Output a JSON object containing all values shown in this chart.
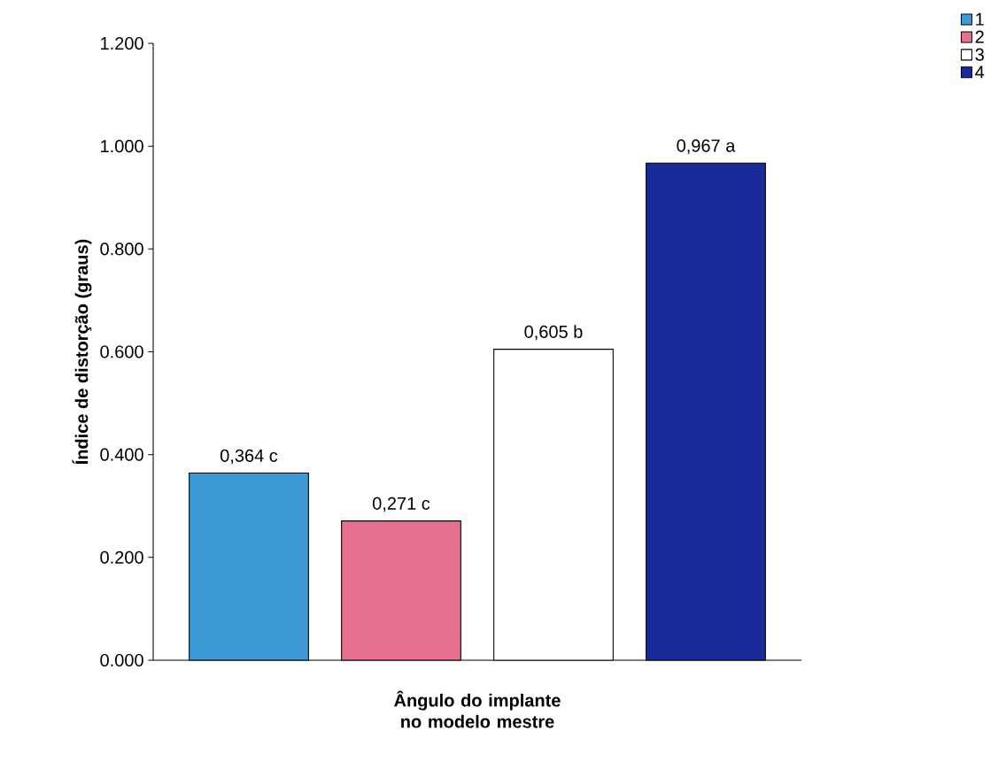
{
  "chart_data": {
    "type": "bar",
    "ylabel": "Índice de distorção (graus)",
    "xlabel": "Ângulo do implante no modelo mestre",
    "categories": [
      null
    ],
    "series": [
      {
        "name": "1",
        "color": "#3d9ad6",
        "values": [
          0.364
        ],
        "value_labels": [
          "0,364 c"
        ]
      },
      {
        "name": "2",
        "color": "#e8708f",
        "values": [
          0.271
        ],
        "value_labels": [
          "0,271 c"
        ]
      },
      {
        "name": "3",
        "color": "#ffffff",
        "values": [
          0.605
        ],
        "value_labels": [
          "0,605 b"
        ]
      },
      {
        "name": "4",
        "color": "#1a2a9a",
        "values": [
          0.967
        ],
        "value_labels": [
          "0,967 a"
        ]
      }
    ],
    "ylim": [
      0,
      1.2
    ],
    "yticks": [
      {
        "value": 0,
        "label": "0.000"
      },
      {
        "value": 0.2,
        "label": "0.200"
      },
      {
        "value": 0.4,
        "label": "0.400"
      },
      {
        "value": 0.6,
        "label": "0.600"
      },
      {
        "value": 0.8,
        "label": "0.800"
      },
      {
        "value": 1.0,
        "label": "1.000"
      },
      {
        "value": 1.2,
        "label": "1.200"
      }
    ],
    "grid": false,
    "legend": "top right"
  }
}
